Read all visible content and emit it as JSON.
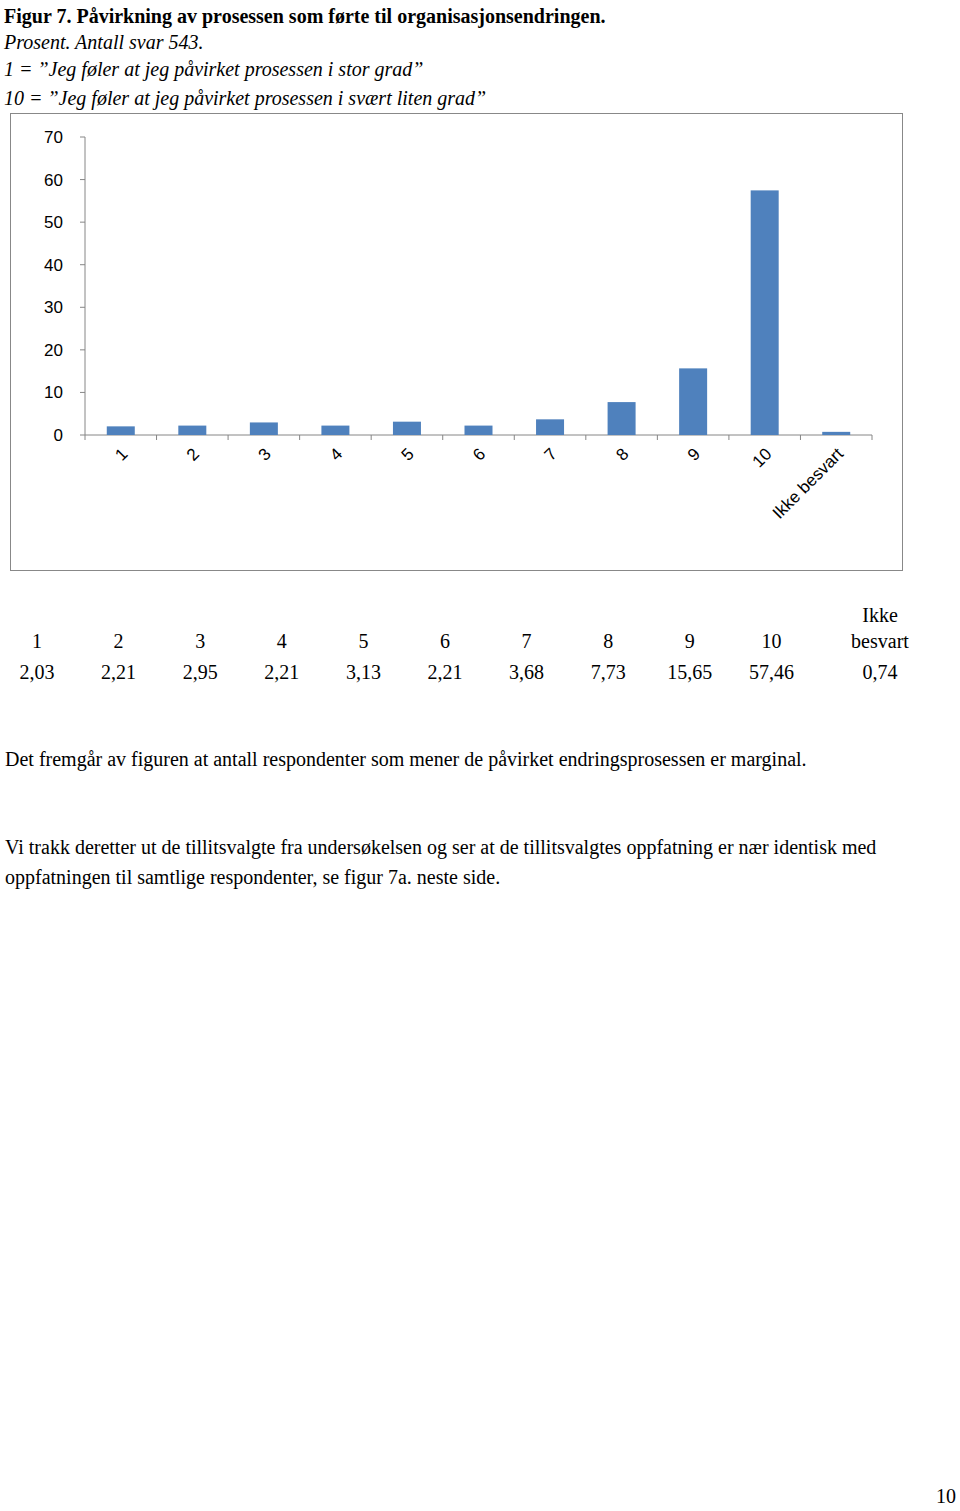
{
  "figure": {
    "title": "Figur 7. Påvirkning av prosessen som førte til organisasjonsendringen.",
    "subtitle": "Prosent. Antall svar 543.",
    "scale_notes": [
      "1 = ”Jeg føler at jeg påvirket prosessen i stor grad”",
      "10 = ”Jeg føler at jeg påvirket prosessen i svært liten grad”"
    ]
  },
  "chart_data": {
    "type": "bar",
    "categories": [
      "1",
      "2",
      "3",
      "4",
      "5",
      "6",
      "7",
      "8",
      "9",
      "10",
      "Ikke besvart"
    ],
    "values": [
      2.03,
      2.21,
      2.95,
      2.21,
      3.13,
      2.21,
      3.68,
      7.73,
      15.65,
      57.46,
      0.74
    ],
    "value_labels": [
      "2,03",
      "2,21",
      "2,95",
      "2,21",
      "3,13",
      "2,21",
      "3,68",
      "7,73",
      "15,65",
      "57,46",
      "0,74"
    ],
    "color": "#4f81bd",
    "ylim": [
      0,
      70
    ],
    "yticks": [
      0,
      10,
      20,
      30,
      40,
      50,
      60,
      70
    ],
    "grid": false
  },
  "paragraphs": [
    "Det fremgår av figuren at antall respondenter som mener de påvirket endringsprosessen er marginal.",
    "Vi trakk deretter ut de tillitsvalgte fra undersøkelsen og ser at de tillitsvalgtes oppfatning er nær identisk med oppfatningen til samtlige respondenter, se figur 7a. neste side."
  ],
  "page_number": "10"
}
